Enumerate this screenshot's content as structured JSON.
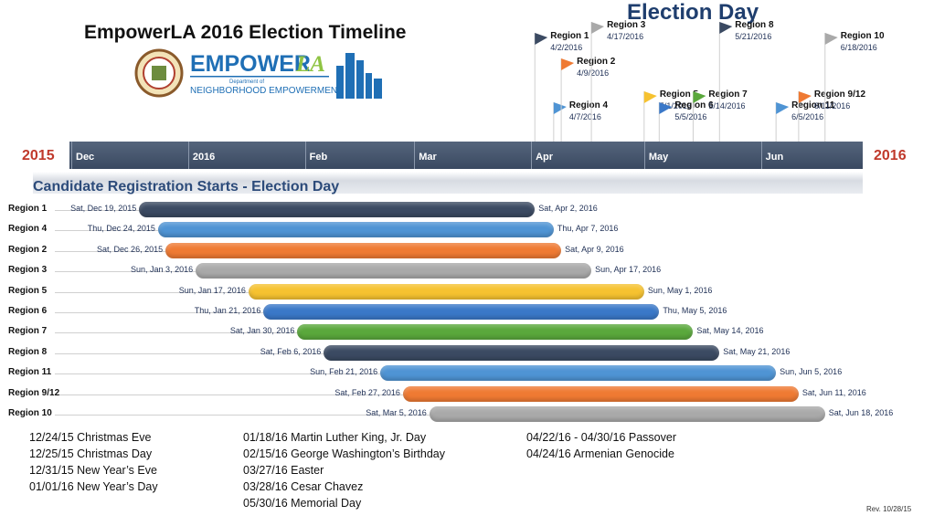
{
  "title": "EmpowerLA 2016 Election Timeline",
  "logo": {
    "word_1": "EMPOWER",
    "word_2": "LA",
    "line_1": "Department of",
    "line_2": "NEIGHBORHOOD EMPOWERMENT"
  },
  "election_day_title": "Election Day",
  "section_title": "Candidate Registration Starts  -  Election Day",
  "revision": "Rev. 10/28/15",
  "colors": {
    "timeline_bar": "#3f4e66",
    "year_label": "#c0392b",
    "date_text": "#1e2f55"
  },
  "chart_data": {
    "type": "gantt",
    "year_start_label": "2015",
    "year_end_label": "2016",
    "axis_range": [
      "2015-12-01",
      "2016-06-28"
    ],
    "months": [
      {
        "label": "Dec",
        "date": "2015-12-01"
      },
      {
        "label": "2016",
        "date": "2016-01-01"
      },
      {
        "label": "Feb",
        "date": "2016-02-01"
      },
      {
        "label": "Mar",
        "date": "2016-03-01"
      },
      {
        "label": "Apr",
        "date": "2016-04-01"
      },
      {
        "label": "May",
        "date": "2016-05-01"
      },
      {
        "label": "Jun",
        "date": "2016-06-01"
      }
    ],
    "rows": [
      {
        "label": "Region 1",
        "start": "2015-12-19",
        "end": "2016-04-02",
        "start_label": "Sat, Dec 19, 2015",
        "end_label": "Sat, Apr 2, 2016",
        "color": "#3b4a62"
      },
      {
        "label": "Region 4",
        "start": "2015-12-24",
        "end": "2016-04-07",
        "start_label": "Thu, Dec 24, 2015",
        "end_label": "Thu, Apr 7, 2016",
        "color": "#4f94d4"
      },
      {
        "label": "Region 2",
        "start": "2015-12-26",
        "end": "2016-04-09",
        "start_label": "Sat, Dec 26, 2015",
        "end_label": "Sat, Apr 9, 2016",
        "color": "#ef7a33"
      },
      {
        "label": "Region 3",
        "start": "2016-01-03",
        "end": "2016-04-17",
        "start_label": "Sun, Jan 3, 2016",
        "end_label": "Sun, Apr 17, 2016",
        "color": "#a9a9a9"
      },
      {
        "label": "Region 5",
        "start": "2016-01-17",
        "end": "2016-05-01",
        "start_label": "Sun, Jan 17, 2016",
        "end_label": "Sun, May 1, 2016",
        "color": "#f6c230"
      },
      {
        "label": "Region 6",
        "start": "2016-01-21",
        "end": "2016-05-05",
        "start_label": "Thu, Jan 21, 2016",
        "end_label": "Thu, May 5, 2016",
        "color": "#3a78c8"
      },
      {
        "label": "Region 7",
        "start": "2016-01-30",
        "end": "2016-05-14",
        "start_label": "Sat, Jan 30, 2016",
        "end_label": "Sat, May 14, 2016",
        "color": "#5aa83c"
      },
      {
        "label": "Region 8",
        "start": "2016-02-06",
        "end": "2016-05-21",
        "start_label": "Sat, Feb 6, 2016",
        "end_label": "Sat, May 21, 2016",
        "color": "#3b4a62"
      },
      {
        "label": "Region 11",
        "start": "2016-02-21",
        "end": "2016-06-05",
        "start_label": "Sun, Feb 21, 2016",
        "end_label": "Sun, Jun 5, 2016",
        "color": "#4f94d4"
      },
      {
        "label": "Region  9/12",
        "start": "2016-02-27",
        "end": "2016-06-11",
        "start_label": "Sat, Feb 27, 2016",
        "end_label": "Sat, Jun 11, 2016",
        "color": "#ef7a33"
      },
      {
        "label": "Region 10",
        "start": "2016-03-05",
        "end": "2016-06-18",
        "start_label": "Sat, Mar 5, 2016",
        "end_label": "Sat, Jun 18, 2016",
        "color": "#a9a9a9"
      }
    ],
    "election_flags": [
      {
        "name": "Region 1",
        "date": "2016-04-02",
        "date_label": "4/2/2016",
        "level": 3,
        "color": "#3b4a62"
      },
      {
        "name": "Region 4",
        "date": "2016-04-07",
        "date_label": "4/7/2016",
        "level": 0,
        "color": "#4f94d4"
      },
      {
        "name": "Region 2",
        "date": "2016-04-09",
        "date_label": "4/9/2016",
        "level": 2,
        "color": "#ef7a33"
      },
      {
        "name": "Region 3",
        "date": "2016-04-17",
        "date_label": "4/17/2016",
        "level": 4,
        "color": "#a9a9a9"
      },
      {
        "name": "Region 5",
        "date": "2016-05-01",
        "date_label": "5/1/2016",
        "level": 1,
        "color": "#f6c230"
      },
      {
        "name": "Region 6",
        "date": "2016-05-05",
        "date_label": "5/5/2016",
        "level": 0,
        "color": "#3a78c8"
      },
      {
        "name": "Region 7",
        "date": "2016-05-14",
        "date_label": "5/14/2016",
        "level": 1,
        "color": "#5aa83c"
      },
      {
        "name": "Region 8",
        "date": "2016-05-21",
        "date_label": "5/21/2016",
        "level": 4,
        "color": "#3b4a62"
      },
      {
        "name": "Region 11",
        "date": "2016-06-05",
        "date_label": "6/5/2016",
        "level": 0,
        "color": "#4f94d4"
      },
      {
        "name": "Region 9/12",
        "date": "2016-06-11",
        "date_label": "6/11/2016",
        "level": 1,
        "color": "#ef7a33"
      },
      {
        "name": "Region 10",
        "date": "2016-06-18",
        "date_label": "6/18/2016",
        "level": 3,
        "color": "#a9a9a9"
      }
    ]
  },
  "holidays": {
    "column_1": [
      "12/24/15 Christmas Eve",
      "12/25/15 Christmas Day",
      "12/31/15 New Year’s Eve",
      "01/01/16 New Year’s Day"
    ],
    "column_2": [
      "01/18/16 Martin Luther King, Jr. Day",
      "02/15/16 George Washington’s Birthday",
      "03/27/16 Easter",
      "03/28/16 Cesar Chavez",
      "05/30/16 Memorial Day"
    ],
    "column_3": [
      "04/22/16 - 04/30/16 Passover",
      "04/24/16 Armenian Genocide"
    ]
  }
}
